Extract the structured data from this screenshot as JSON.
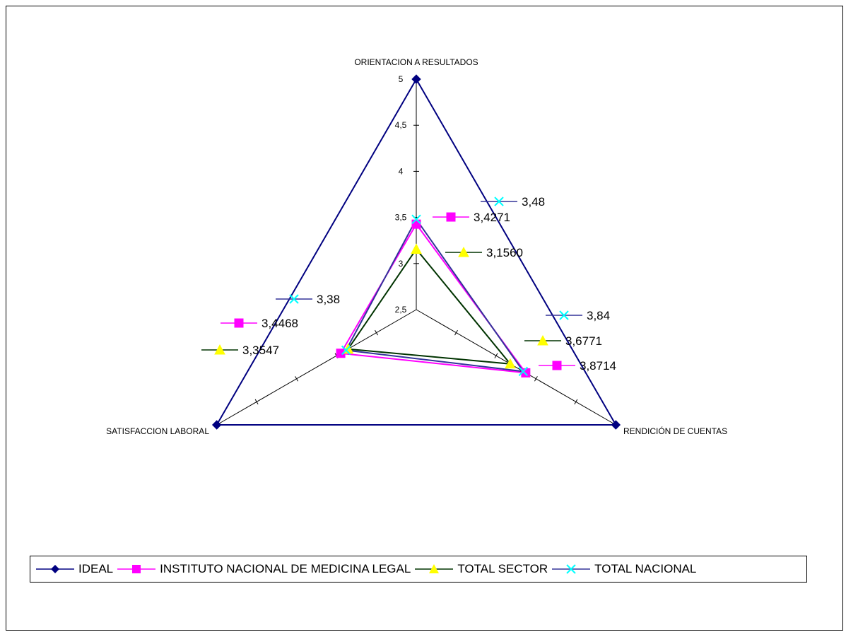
{
  "chart_data": {
    "type": "radar",
    "axes": [
      "ORIENTACION A RESULTADOS",
      "RENDICIÓN DE CUENTAS",
      "SATISFACCION LABORAL"
    ],
    "r_range": [
      2.5,
      5
    ],
    "r_ticks": [
      "2,5",
      "3",
      "3,5",
      "4",
      "4,5",
      "5"
    ],
    "series": [
      {
        "name": "IDEAL",
        "values": [
          5,
          5,
          5
        ],
        "color": "#000080",
        "marker": "diamond",
        "labels": [
          "",
          "",
          ""
        ]
      },
      {
        "name": "INSTITUTO NACIONAL DE MEDICINA LEGAL",
        "values": [
          3.4271,
          3.8714,
          3.4468
        ],
        "color": "#FF00FF",
        "marker": "square",
        "labels": [
          "3,4271",
          "3,8714",
          "3,4468"
        ]
      },
      {
        "name": "TOTAL SECTOR",
        "values": [
          3.156,
          3.6771,
          3.3547
        ],
        "color": "#003300",
        "marker_color": "#FFFF00",
        "marker": "triangle",
        "labels": [
          "3,1560",
          "3,6771",
          "3,3547"
        ]
      },
      {
        "name": "TOTAL NACIONAL",
        "values": [
          3.48,
          3.84,
          3.38
        ],
        "color": "#333399",
        "marker_color": "#00FFFF",
        "marker": "x",
        "labels": [
          "3,48",
          "3,84",
          "3,38"
        ]
      }
    ],
    "legend_position": "bottom"
  }
}
